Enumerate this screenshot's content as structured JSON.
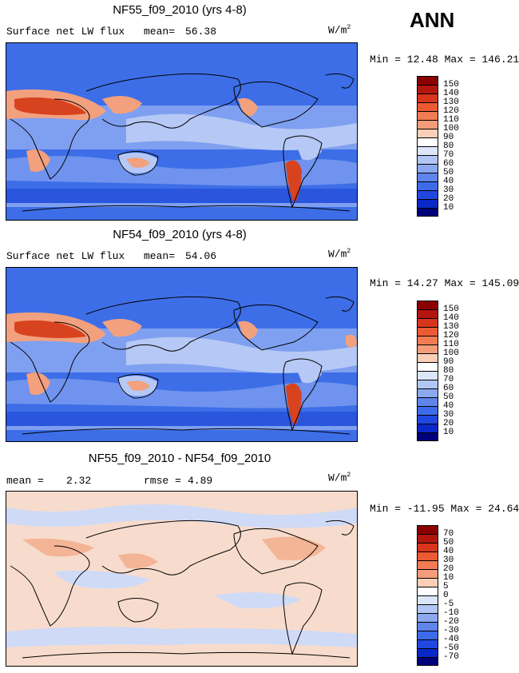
{
  "season": "ANN",
  "colors": {
    "bg_mid": "#3d6ee8",
    "bg_light": "#7fa0f0",
    "pale": "#b6c8f5",
    "warm": "#f3a07e",
    "hot": "#d8431f",
    "diff_bg": "#f7dccd",
    "diff_blue": "#cfdaf7",
    "coast": "#000000"
  },
  "panels": [
    {
      "title": "NF55_f09_2010 (yrs 4-8)",
      "left_label": "Surface net LW flux",
      "stat_label": "mean=",
      "stat_value": "56.38",
      "units": "W/m",
      "units_sup": "2",
      "minmax": "Min =  12.48 Max = 146.21",
      "levels": [
        "150",
        "140",
        "130",
        "120",
        "110",
        "100",
        "90",
        "80",
        "70",
        "60",
        "50",
        "40",
        "30",
        "20",
        "10"
      ],
      "palette": [
        "#8b0000",
        "#b3160e",
        "#d8351c",
        "#ec5a32",
        "#f27b53",
        "#f59c78",
        "#fbcfb7",
        "#ffffff",
        "#dce6fa",
        "#b2c6f6",
        "#8ba8f1",
        "#5f85ec",
        "#3c6bea",
        "#2048e0",
        "#0a28c8",
        "#00007a"
      ]
    },
    {
      "title": "NF54_f09_2010 (yrs 4-8)",
      "left_label": "Surface net LW flux",
      "stat_label": "mean=",
      "stat_value": "54.06",
      "units": "W/m",
      "units_sup": "2",
      "minmax": "Min =  14.27 Max = 145.09",
      "levels": [
        "150",
        "140",
        "130",
        "120",
        "110",
        "100",
        "90",
        "80",
        "70",
        "60",
        "50",
        "40",
        "30",
        "20",
        "10"
      ],
      "palette": [
        "#8b0000",
        "#b3160e",
        "#d8351c",
        "#ec5a32",
        "#f27b53",
        "#f59c78",
        "#fbcfb7",
        "#ffffff",
        "#dce6fa",
        "#b2c6f6",
        "#8ba8f1",
        "#5f85ec",
        "#3c6bea",
        "#2048e0",
        "#0a28c8",
        "#00007a"
      ]
    },
    {
      "title": "NF55_f09_2010 - NF54_f09_2010",
      "left_label": "mean =",
      "left_value": "2.32",
      "stat_label": "rmse =",
      "stat_value": "4.89",
      "units": "W/m",
      "units_sup": "2",
      "minmax": "Min = -11.95 Max =  24.64",
      "levels": [
        "70",
        "50",
        "40",
        "30",
        "20",
        "10",
        "5",
        "0",
        "-5",
        "-10",
        "-20",
        "-30",
        "-40",
        "-50",
        "-70"
      ],
      "palette": [
        "#8b0000",
        "#b3160e",
        "#d8351c",
        "#ec5a32",
        "#f27b53",
        "#f59c78",
        "#fbcfb7",
        "#ffffff",
        "#dce6fa",
        "#b2c6f6",
        "#8ba8f1",
        "#5f85ec",
        "#3c6bea",
        "#2048e0",
        "#0a28c8",
        "#00007a"
      ]
    }
  ]
}
